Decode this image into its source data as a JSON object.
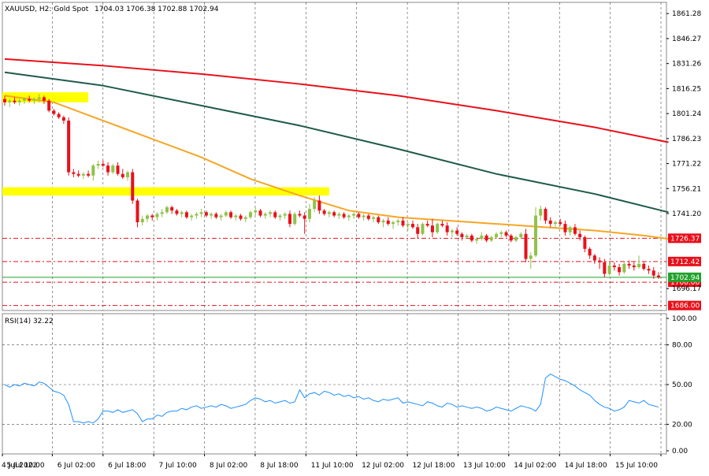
{
  "header": {
    "symbol": "XAUUSD, H2:  Gold Spot",
    "ohlc": "1704.03 1706.38 1702.88 1702.94"
  },
  "rsi_header": {
    "label": "RSI(14) 32.22"
  },
  "colors": {
    "bull": "#90c24a",
    "bear": "#e8101a",
    "ma_red": "#e8101a",
    "ma_teal": "#1e5a4a",
    "ma_orange": "#f5a623",
    "rsi_line": "#1e90ff",
    "zone": "#ffff00",
    "current_price": "#22a22a"
  },
  "chart_data": [
    {
      "type": "candlestick",
      "title": "XAUUSD, H2: Gold Spot",
      "ylim": [
        1683,
        1868
      ],
      "y_ticks": [
        "1861.28",
        "1846.27",
        "1831.26",
        "1816.25",
        "1801.24",
        "1786.23",
        "1771.22",
        "1756.21",
        "1741.20",
        "1696.17"
      ],
      "x_ticks": [
        "4 Jul 2022",
        "5 Jul 10:00",
        "6 Jul 02:00",
        "6 Jul 18:00",
        "7 Jul 10:00",
        "8 Jul 02:00",
        "8 Jul 18:00",
        "11 Jul 10:00",
        "12 Jul 02:00",
        "12 Jul 18:00",
        "13 Jul 10:00",
        "14 Jul 02:00",
        "14 Jul 18:00",
        "15 Jul 10:00"
      ],
      "horizontal_levels": [
        {
          "label": "1726.37",
          "value": 1726.37
        },
        {
          "label": "1712.42",
          "value": 1712.42
        },
        {
          "label": "1700.00",
          "value": 1700.0
        },
        {
          "label": "1686.00",
          "value": 1686.0
        }
      ],
      "current_price": {
        "label": "1702.94",
        "value": 1702.94
      },
      "zones": [
        {
          "bar_start": 0,
          "bar_end": 17,
          "low": 1808,
          "high": 1814
        },
        {
          "bar_start": 0,
          "bar_end": 66,
          "low": 1752,
          "high": 1757
        }
      ],
      "candles": [
        [
          1810,
          1812,
          1806,
          1808
        ],
        [
          1808,
          1810,
          1805,
          1809
        ],
        [
          1809,
          1811,
          1807,
          1808
        ],
        [
          1808,
          1810,
          1806,
          1809
        ],
        [
          1809,
          1811,
          1807,
          1810
        ],
        [
          1810,
          1812,
          1808,
          1809
        ],
        [
          1809,
          1811,
          1807,
          1810
        ],
        [
          1810,
          1813,
          1808,
          1811
        ],
        [
          1811,
          1812,
          1807,
          1809
        ],
        [
          1809,
          1810,
          1802,
          1803
        ],
        [
          1803,
          1804,
          1800,
          1801
        ],
        [
          1801,
          1802,
          1798,
          1799
        ],
        [
          1799,
          1800,
          1795,
          1797
        ],
        [
          1797,
          1799,
          1764,
          1766
        ],
        [
          1766,
          1768,
          1763,
          1765
        ],
        [
          1765,
          1767,
          1763,
          1764
        ],
        [
          1764,
          1766,
          1762,
          1765
        ],
        [
          1765,
          1767,
          1763,
          1764
        ],
        [
          1764,
          1771,
          1761,
          1770
        ],
        [
          1770,
          1773,
          1768,
          1771
        ],
        [
          1771,
          1773,
          1769,
          1770
        ],
        [
          1770,
          1772,
          1764,
          1766
        ],
        [
          1766,
          1771,
          1765,
          1770
        ],
        [
          1770,
          1772,
          1764,
          1765
        ],
        [
          1765,
          1768,
          1762,
          1763
        ],
        [
          1763,
          1767,
          1761,
          1766
        ],
        [
          1766,
          1768,
          1747,
          1749
        ],
        [
          1749,
          1750,
          1733,
          1736
        ],
        [
          1736,
          1740,
          1734,
          1738
        ],
        [
          1738,
          1741,
          1736,
          1740
        ],
        [
          1740,
          1741,
          1737,
          1739
        ],
        [
          1739,
          1742,
          1737,
          1741
        ],
        [
          1741,
          1744,
          1739,
          1742
        ],
        [
          1742,
          1746,
          1741,
          1745
        ],
        [
          1745,
          1746,
          1741,
          1743
        ],
        [
          1743,
          1744,
          1740,
          1741
        ],
        [
          1741,
          1743,
          1739,
          1742
        ],
        [
          1742,
          1743,
          1738,
          1739
        ],
        [
          1739,
          1741,
          1737,
          1740
        ],
        [
          1740,
          1742,
          1738,
          1741
        ],
        [
          1741,
          1744,
          1739,
          1742
        ],
        [
          1742,
          1743,
          1739,
          1740
        ],
        [
          1740,
          1742,
          1738,
          1741
        ],
        [
          1741,
          1742,
          1738,
          1739
        ],
        [
          1739,
          1741,
          1737,
          1740
        ],
        [
          1740,
          1743,
          1739,
          1742
        ],
        [
          1742,
          1743,
          1738,
          1739
        ],
        [
          1739,
          1741,
          1737,
          1740
        ],
        [
          1740,
          1741,
          1737,
          1738
        ],
        [
          1738,
          1740,
          1736,
          1739
        ],
        [
          1739,
          1743,
          1738,
          1742
        ],
        [
          1742,
          1745,
          1740,
          1743
        ],
        [
          1743,
          1744,
          1739,
          1740
        ],
        [
          1740,
          1742,
          1738,
          1741
        ],
        [
          1741,
          1743,
          1739,
          1742
        ],
        [
          1742,
          1743,
          1738,
          1739
        ],
        [
          1739,
          1741,
          1737,
          1740
        ],
        [
          1740,
          1742,
          1738,
          1741
        ],
        [
          1741,
          1743,
          1733,
          1735
        ],
        [
          1735,
          1742,
          1734,
          1741
        ],
        [
          1741,
          1743,
          1739,
          1740
        ],
        [
          1740,
          1742,
          1729,
          1738
        ],
        [
          1738,
          1747,
          1736,
          1744
        ],
        [
          1744,
          1751,
          1742,
          1749
        ],
        [
          1749,
          1752,
          1741,
          1743
        ],
        [
          1743,
          1744,
          1740,
          1741
        ],
        [
          1741,
          1743,
          1739,
          1742
        ],
        [
          1742,
          1743,
          1739,
          1740
        ],
        [
          1740,
          1742,
          1738,
          1741
        ],
        [
          1741,
          1742,
          1738,
          1739
        ],
        [
          1739,
          1741,
          1737,
          1740
        ],
        [
          1740,
          1742,
          1738,
          1741
        ],
        [
          1741,
          1742,
          1738,
          1739
        ],
        [
          1739,
          1741,
          1737,
          1740
        ],
        [
          1740,
          1741,
          1737,
          1738
        ],
        [
          1738,
          1740,
          1736,
          1739
        ],
        [
          1739,
          1740,
          1735,
          1736
        ],
        [
          1736,
          1738,
          1733,
          1737
        ],
        [
          1737,
          1739,
          1734,
          1735
        ],
        [
          1735,
          1737,
          1732,
          1736
        ],
        [
          1736,
          1738,
          1734,
          1737
        ],
        [
          1737,
          1739,
          1733,
          1734
        ],
        [
          1734,
          1736,
          1731,
          1735
        ],
        [
          1735,
          1737,
          1732,
          1733
        ],
        [
          1733,
          1735,
          1726,
          1729
        ],
        [
          1729,
          1736,
          1728,
          1735
        ],
        [
          1735,
          1737,
          1733,
          1734
        ],
        [
          1734,
          1738,
          1727,
          1730
        ],
        [
          1730,
          1736,
          1729,
          1735
        ],
        [
          1735,
          1737,
          1733,
          1734
        ],
        [
          1734,
          1736,
          1728,
          1730
        ],
        [
          1730,
          1732,
          1727,
          1731
        ],
        [
          1731,
          1733,
          1728,
          1729
        ],
        [
          1729,
          1730,
          1725,
          1727
        ],
        [
          1727,
          1729,
          1726,
          1728
        ],
        [
          1728,
          1729,
          1724,
          1725
        ],
        [
          1725,
          1727,
          1723,
          1726
        ],
        [
          1726,
          1730,
          1725,
          1728
        ],
        [
          1728,
          1729,
          1724,
          1725
        ],
        [
          1725,
          1728,
          1724,
          1727
        ],
        [
          1727,
          1730,
          1726,
          1729
        ],
        [
          1729,
          1731,
          1727,
          1730
        ],
        [
          1730,
          1731,
          1727,
          1728
        ],
        [
          1728,
          1729,
          1724,
          1725
        ],
        [
          1725,
          1728,
          1724,
          1727
        ],
        [
          1727,
          1730,
          1726,
          1729
        ],
        [
          1729,
          1732,
          1712,
          1714
        ],
        [
          1714,
          1718,
          1708,
          1716
        ],
        [
          1716,
          1745,
          1715,
          1740
        ],
        [
          1740,
          1746,
          1737,
          1744
        ],
        [
          1744,
          1745,
          1735,
          1737
        ],
        [
          1737,
          1739,
          1733,
          1735
        ],
        [
          1735,
          1737,
          1733,
          1736
        ],
        [
          1736,
          1738,
          1734,
          1735
        ],
        [
          1735,
          1737,
          1728,
          1730
        ],
        [
          1730,
          1734,
          1728,
          1733
        ],
        [
          1733,
          1735,
          1728,
          1729
        ],
        [
          1729,
          1731,
          1725,
          1727
        ],
        [
          1727,
          1728,
          1718,
          1720
        ],
        [
          1720,
          1721,
          1714,
          1716
        ],
        [
          1716,
          1717,
          1711,
          1713
        ],
        [
          1713,
          1715,
          1708,
          1712
        ],
        [
          1712,
          1714,
          1703,
          1705
        ],
        [
          1705,
          1712,
          1704,
          1710
        ],
        [
          1710,
          1712,
          1707,
          1709
        ],
        [
          1709,
          1711,
          1704,
          1706
        ],
        [
          1706,
          1712,
          1705,
          1711
        ],
        [
          1711,
          1713,
          1708,
          1710
        ],
        [
          1710,
          1712,
          1707,
          1709
        ],
        [
          1709,
          1716,
          1708,
          1711
        ],
        [
          1711,
          1712,
          1707,
          1708
        ],
        [
          1708,
          1710,
          1705,
          1707
        ],
        [
          1707,
          1709,
          1702,
          1704
        ],
        [
          1704,
          1706,
          1702,
          1703
        ]
      ],
      "series": [
        {
          "name": "",
          "color": "#e8101a",
          "x": [
            0,
            20,
            40,
            60,
            80,
            100,
            120,
            135
          ],
          "y": [
            1834,
            1830,
            1825,
            1819,
            1812,
            1803,
            1793,
            1784
          ]
        },
        {
          "name": "",
          "color": "#1e5a4a",
          "x": [
            0,
            20,
            40,
            60,
            80,
            100,
            120,
            135
          ],
          "y": [
            1826,
            1818,
            1806,
            1794,
            1780,
            1765,
            1753,
            1742
          ]
        },
        {
          "name": "",
          "color": "#f5a623",
          "x": [
            0,
            10,
            20,
            30,
            40,
            50,
            60,
            70,
            80,
            90,
            100,
            110,
            120,
            130,
            135
          ],
          "y": [
            1812,
            1808,
            1797,
            1786,
            1775,
            1762,
            1752,
            1743,
            1739,
            1737,
            1735,
            1733,
            1731,
            1728,
            1726
          ]
        }
      ]
    },
    {
      "type": "line",
      "title": "RSI(14) 32.22",
      "ylim": [
        0,
        100
      ],
      "y_ticks": [
        "100.00",
        "80.00",
        "50.00",
        "20.00",
        "0.00"
      ],
      "series": [
        {
          "name": "",
          "color": "#1e90ff",
          "values": [
            50,
            48,
            50,
            49,
            51,
            50,
            49,
            52,
            51,
            48,
            45,
            44,
            42,
            35,
            22,
            22,
            21,
            22,
            21,
            24,
            30,
            30,
            29,
            31,
            29,
            30,
            31,
            28,
            22,
            24,
            24,
            27,
            26,
            29,
            30,
            30,
            32,
            31,
            33,
            34,
            32,
            33,
            34,
            33,
            35,
            34,
            32,
            33,
            34,
            35,
            38,
            40,
            39,
            37,
            38,
            36,
            37,
            38,
            36,
            37,
            46,
            40,
            43,
            44,
            42,
            45,
            44,
            42,
            43,
            41,
            42,
            40,
            41,
            39,
            40,
            38,
            37,
            39,
            38,
            39,
            40,
            36,
            37,
            36,
            35,
            34,
            37,
            36,
            34,
            33,
            36,
            35,
            33,
            34,
            33,
            32,
            33,
            32,
            30,
            31,
            33,
            32,
            31,
            30,
            32,
            34,
            33,
            32,
            30,
            35,
            55,
            58,
            56,
            54,
            53,
            51,
            49,
            46,
            44,
            42,
            38,
            35,
            33,
            32,
            30,
            31,
            33,
            38,
            37,
            36,
            38,
            35,
            34,
            33
          ]
        }
      ]
    }
  ]
}
